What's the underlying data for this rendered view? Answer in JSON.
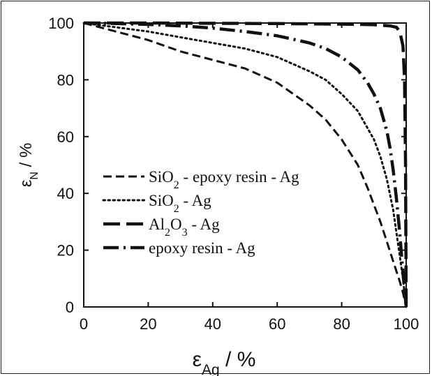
{
  "chart_data": {
    "type": "line",
    "xlabel": {
      "base": "ε",
      "sub": "Ag",
      "rest": " / %"
    },
    "ylabel": {
      "base": "ε",
      "sub": "N",
      "rest": " / %"
    },
    "xlim": [
      0,
      100
    ],
    "ylim": [
      0,
      100
    ],
    "xticks": [
      0,
      20,
      40,
      60,
      80,
      100
    ],
    "yticks": [
      0,
      20,
      40,
      60,
      80,
      100
    ],
    "grid": false,
    "legend_position": "center-left",
    "series": [
      {
        "name": "SiO2 - epoxy resin - Ag",
        "label_parts": [
          {
            "t": "SiO"
          },
          {
            "t": "2",
            "sub": true
          },
          {
            "t": " - epoxy resin - Ag"
          }
        ],
        "style": "short-dash",
        "x": [
          0,
          10,
          20,
          30,
          40,
          50,
          60,
          70,
          75,
          80,
          85,
          88,
          90,
          92,
          94,
          96,
          98,
          99,
          100
        ],
        "y": [
          100,
          97,
          94,
          90,
          87,
          84,
          79,
          71,
          66,
          59,
          50,
          42,
          36,
          30,
          23,
          16,
          9,
          5,
          0
        ]
      },
      {
        "name": "SiO2 - Ag",
        "label_parts": [
          {
            "t": "SiO"
          },
          {
            "t": "2",
            "sub": true
          },
          {
            "t": " - Ag"
          }
        ],
        "style": "dotted",
        "x": [
          0,
          10,
          20,
          30,
          40,
          50,
          60,
          70,
          75,
          80,
          85,
          88,
          90,
          92,
          94,
          96,
          98,
          99,
          100
        ],
        "y": [
          100,
          98.5,
          97,
          95,
          93,
          91,
          88,
          83,
          80,
          75,
          69,
          63,
          59,
          53,
          45,
          34,
          18,
          10,
          0
        ]
      },
      {
        "name": "Al2O3 - Ag",
        "label_parts": [
          {
            "t": "Al"
          },
          {
            "t": "2",
            "sub": true
          },
          {
            "t": "O"
          },
          {
            "t": "3",
            "sub": true
          },
          {
            "t": " - Ag"
          }
        ],
        "style": "long-dash",
        "x": [
          0,
          20,
          40,
          60,
          80,
          90,
          95,
          97,
          98,
          99,
          99.5,
          99.8,
          100
        ],
        "y": [
          100,
          100,
          99.9,
          99.8,
          99.6,
          99.4,
          99,
          98.5,
          97,
          92,
          80,
          50,
          0
        ]
      },
      {
        "name": "epoxy resin - Ag",
        "label_parts": [
          {
            "t": "epoxy resin - Ag"
          }
        ],
        "style": "dash-dot",
        "x": [
          0,
          10,
          20,
          30,
          40,
          50,
          60,
          70,
          75,
          80,
          85,
          88,
          90,
          92,
          94,
          95,
          96,
          97,
          98,
          99,
          100
        ],
        "y": [
          100,
          99.8,
          99.5,
          99,
          98.2,
          97,
          95.5,
          93,
          91,
          88,
          83.5,
          79,
          75,
          70,
          62,
          56,
          48,
          38,
          26,
          12,
          0
        ]
      }
    ]
  }
}
